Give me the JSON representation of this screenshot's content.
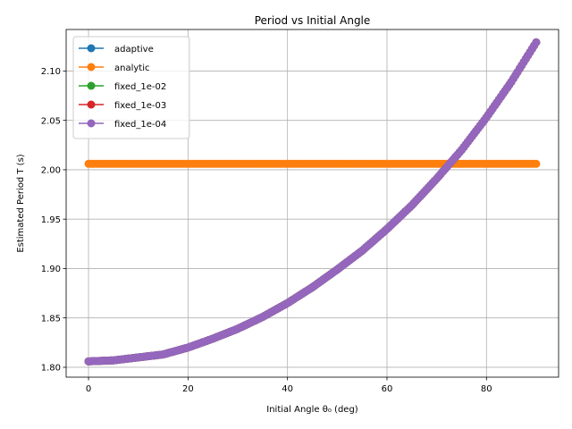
{
  "chart_data": {
    "type": "line",
    "title": "Period vs Initial Angle",
    "xlabel": "Initial Angle θ₀ (deg)",
    "ylabel": "Estimated Period T (s)",
    "xlim": [
      -4.5,
      94.5
    ],
    "ylim": [
      1.79,
      2.142
    ],
    "x_ticks": [
      0,
      20,
      40,
      60,
      80
    ],
    "y_ticks": [
      1.8,
      1.85,
      1.9,
      1.95,
      2.0,
      2.05,
      2.1
    ],
    "y_tick_labels": [
      "1.80",
      "1.85",
      "1.90",
      "1.95",
      "2.00",
      "2.05",
      "2.10"
    ],
    "grid": true,
    "legend_position": "upper-left",
    "markers": true,
    "x": [
      0,
      5,
      10,
      15,
      20,
      25,
      30,
      35,
      40,
      45,
      50,
      55,
      60,
      65,
      70,
      75,
      80,
      85,
      90
    ],
    "series": [
      {
        "name": "adaptive",
        "color": "#1f77b4",
        "values": [
          1.806,
          1.807,
          1.81,
          1.813,
          1.82,
          1.829,
          1.839,
          1.851,
          1.865,
          1.881,
          1.899,
          1.918,
          1.94,
          1.964,
          1.991,
          2.02,
          2.053,
          2.089,
          2.129
        ]
      },
      {
        "name": "analytic",
        "color": "#ff7f0e",
        "values": [
          2.006,
          2.006,
          2.006,
          2.006,
          2.006,
          2.006,
          2.006,
          2.006,
          2.006,
          2.006,
          2.006,
          2.006,
          2.006,
          2.006,
          2.006,
          2.006,
          2.006,
          2.006,
          2.006
        ]
      },
      {
        "name": "fixed_1e-02",
        "color": "#2ca02c",
        "values": [
          1.806,
          1.807,
          1.81,
          1.813,
          1.82,
          1.829,
          1.839,
          1.851,
          1.865,
          1.881,
          1.899,
          1.918,
          1.94,
          1.964,
          1.991,
          2.02,
          2.053,
          2.089,
          2.129
        ]
      },
      {
        "name": "fixed_1e-03",
        "color": "#d62728",
        "values": [
          1.806,
          1.807,
          1.81,
          1.813,
          1.82,
          1.829,
          1.839,
          1.851,
          1.865,
          1.881,
          1.899,
          1.918,
          1.94,
          1.964,
          1.991,
          2.02,
          2.053,
          2.089,
          2.129
        ]
      },
      {
        "name": "fixed_1e-04",
        "color": "#9467bd",
        "values": [
          1.806,
          1.807,
          1.81,
          1.813,
          1.82,
          1.829,
          1.839,
          1.851,
          1.865,
          1.881,
          1.899,
          1.918,
          1.94,
          1.964,
          1.991,
          2.02,
          2.053,
          2.089,
          2.129
        ]
      }
    ]
  }
}
